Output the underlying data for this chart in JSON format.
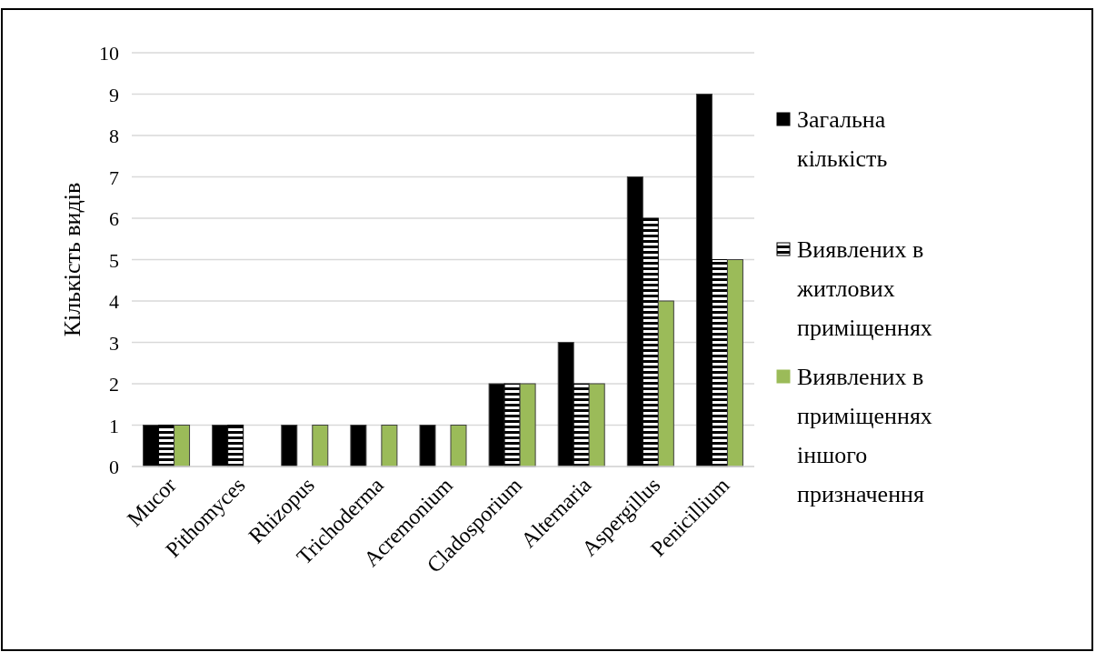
{
  "chart_data": {
    "type": "bar",
    "ylabel": "Кількість видів",
    "categories": [
      "Mucor",
      "Pithomyces",
      "Rhizopus",
      "Trichoderma",
      "Acremonium",
      "Cladosporium",
      "Alternaria",
      "Aspergillus",
      "Penicillium"
    ],
    "series": [
      {
        "name": "Загальна кількість",
        "color": "#000000",
        "values": [
          1,
          1,
          1,
          1,
          1,
          2,
          3,
          7,
          9
        ]
      },
      {
        "name": "Виявлених в житлових приміщеннях",
        "color": "#000000",
        "values": [
          1,
          1,
          0,
          0,
          0,
          2,
          2,
          6,
          5
        ]
      },
      {
        "name": "Виявлених в приміщеннях іншого призначення",
        "color": "#9bbb59",
        "values": [
          1,
          0,
          1,
          1,
          1,
          2,
          2,
          4,
          5
        ]
      }
    ],
    "ylim": [
      0,
      10
    ],
    "yticks": [
      0,
      1,
      2,
      3,
      4,
      5,
      6,
      7,
      8,
      9,
      10
    ],
    "grid": "y",
    "legend": "right"
  }
}
